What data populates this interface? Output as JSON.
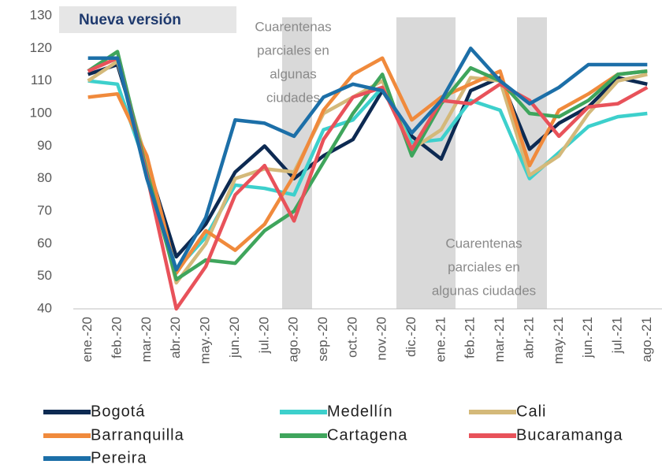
{
  "chart_data": {
    "type": "line",
    "title": "Nueva versión",
    "categories": [
      "ene.-20",
      "feb.-20",
      "mar.-20",
      "abr.-20",
      "may.-20",
      "jun.-20",
      "jul.-20",
      "ago.-20",
      "sep.-20",
      "oct.-20",
      "nov.-20",
      "dic.-20",
      "ene.-21",
      "feb.-21",
      "mar.-21",
      "abr.-21",
      "may.-21",
      "jun.-21",
      "jul.-21",
      "ago.-21"
    ],
    "series": [
      {
        "name": "Bogotá",
        "color": "#0d2a52",
        "values": [
          112,
          115,
          85,
          56,
          66,
          82,
          90,
          80,
          87,
          92,
          107,
          93,
          86,
          107,
          111,
          89,
          97,
          102,
          111,
          109
        ]
      },
      {
        "name": "Medellín",
        "color": "#3dd0cc",
        "values": [
          110,
          109,
          83,
          52,
          62,
          78,
          77,
          75,
          95,
          98,
          108,
          91,
          92,
          104,
          101,
          80,
          88,
          96,
          99,
          100
        ]
      },
      {
        "name": "Cali",
        "color": "#d4b97a",
        "values": [
          110,
          116,
          85,
          48,
          60,
          80,
          83,
          82,
          100,
          105,
          110,
          89,
          95,
          111,
          110,
          81,
          87,
          100,
          110,
          112
        ]
      },
      {
        "name": "Barranquilla",
        "color": "#f08a3c",
        "values": [
          105,
          106,
          87,
          51,
          64,
          58,
          66,
          81,
          101,
          112,
          117,
          98,
          105,
          109,
          113,
          84,
          101,
          106,
          112,
          113
        ]
      },
      {
        "name": "Cartagena",
        "color": "#3fa55c",
        "values": [
          113,
          119,
          82,
          49,
          55,
          54,
          64,
          70,
          85,
          100,
          112,
          87,
          103,
          114,
          110,
          100,
          99,
          104,
          112,
          113
        ]
      },
      {
        "name": "Bucaramanga",
        "color": "#e8525a",
        "values": [
          113,
          117,
          81,
          40,
          53,
          75,
          84,
          67,
          92,
          105,
          108,
          89,
          104,
          103,
          109,
          104,
          93,
          102,
          103,
          108
        ]
      },
      {
        "name": "Pereira",
        "color": "#1c6fa8",
        "values": [
          117,
          117,
          80,
          52,
          68,
          98,
          97,
          93,
          105,
          109,
          107,
          94,
          104,
          120,
          110,
          103,
          108,
          115,
          115,
          115
        ]
      }
    ],
    "annotations": [
      [
        "Cuarentenas",
        "parciales en",
        "algunas",
        "ciudades"
      ],
      [
        "Cuarentenas",
        "parciales en",
        "algunas ciudades"
      ]
    ],
    "ylim": [
      40,
      130
    ],
    "yticks": [
      40,
      50,
      60,
      70,
      80,
      90,
      100,
      110,
      120,
      130
    ],
    "grid": false
  }
}
